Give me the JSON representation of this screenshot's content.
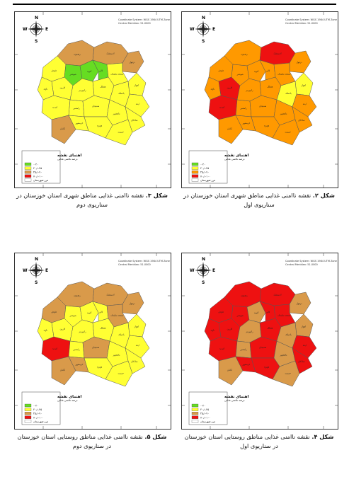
{
  "figures": [
    {
      "id": "fig2",
      "caption_label": "شکل ۲.",
      "caption_text": " نقشه ناامنی غذایی مناطق شهری استان خوزستان در سناریوی اول",
      "coordinate_title": "Coordinate System: WGS 1984 UTM Zone 39N",
      "coordinate_sub": "Central Meridian: 51.0000",
      "legend_title": "اهنمای نقشه",
      "legend_subtitle": "درصد ناامنی غذایی",
      "legend_items": [
        {
          "label": "۰-۲۰",
          "color": "#66dd22"
        },
        {
          "label": "۲۰٫۱-۴۵",
          "color": "#ffff33"
        },
        {
          "label": "۴۵٫۱-۷۰",
          "color": "#ff9900"
        },
        {
          "label": "۷۰٫۱-۱۰۰",
          "color": "#ee1111"
        },
        {
          "label": "مرز شهرستان",
          "color": "#ffffff"
        }
      ],
      "region_colors": [
        "#ff9900",
        "#ee1111",
        "#ff9900",
        "#ff9900",
        "#ff9900",
        "#ff9900",
        "#ff9900",
        "#ff9900",
        "#ffff33",
        "#ff9900",
        "#ee1111",
        "#ff9900",
        "#ff9900",
        "#ffff33",
        "#ff9900",
        "#ee1111",
        "#ff9900",
        "#ff9900",
        "#ff9900",
        "#ff9900",
        "#ff9900",
        "#ff9900",
        "#ff9900",
        "#ff9900"
      ],
      "county_labels": [
        "رهنمون",
        "اندیمشک",
        "دزفول",
        "شوش",
        "شوشتر",
        "گتوند",
        "لالی",
        "مسجد سلیمان",
        "اهواز",
        "باوی",
        "کارون",
        "رامهرمز",
        "هفتکل",
        "باغملک",
        "ایذه",
        "امیدیه",
        "رامشیر",
        "هندیجان",
        "ماهشهر",
        "شادگان",
        "آبادان",
        "خرمشهر",
        "هویزه",
        "حمیدیه"
      ]
    },
    {
      "id": "fig3",
      "caption_label": "شکل ۳.",
      "caption_text": " نقشه ناامنی غذایی مناطق شهری استان خوزستان در سناریوی دوم",
      "coordinate_title": "Coordinate System: WGS 1984 UTM Zone 39N",
      "coordinate_sub": "Central Meridian: 51.0000",
      "legend_title": "اهنمای نقشه",
      "legend_subtitle": "درصد ناامنی غذایی",
      "legend_items": [
        {
          "label": "۰-۲۰",
          "color": "#66dd22"
        },
        {
          "label": "۲۰٫۱-۴۵",
          "color": "#ffff33"
        },
        {
          "label": "۴۵٫۱-۷۰",
          "color": "#d99a4a"
        },
        {
          "label": "۷۰٫۱-۱۰۰",
          "color": "#ee1111"
        },
        {
          "label": "مرز شهرستان",
          "color": "#ffffff"
        }
      ],
      "region_colors": [
        "#d99a4a",
        "#d99a4a",
        "#d99a4a",
        "#ffff33",
        "#66dd22",
        "#66dd22",
        "#66dd22",
        "#ffff33",
        "#ffff33",
        "#ffff33",
        "#ffff33",
        "#ffff33",
        "#ffff33",
        "#ffff33",
        "#ffff33",
        "#ffff33",
        "#ffff33",
        "#ffff33",
        "#ffff33",
        "#ffff33",
        "#d99a4a",
        "#ffff33",
        "#ffff33",
        "#ffff33"
      ],
      "county_labels": [
        "رهنمون",
        "اندیمشک",
        "دزفول",
        "شوش",
        "شوشتر",
        "گتوند",
        "لالی",
        "مسجد سلیمان",
        "اهواز",
        "باوی",
        "کارون",
        "رامهرمز",
        "هفتکل",
        "باغملک",
        "ایذه",
        "امیدیه",
        "رامشیر",
        "هندیجان",
        "ماهشهر",
        "شادگان",
        "آبادان",
        "خرمشهر",
        "هویزه",
        "حمیدیه"
      ]
    },
    {
      "id": "fig4",
      "caption_label": "شکل ۴.",
      "caption_text": " نقشه ناامنی غذایی مناطق روستایی استان خوزستان در سناریوی اول",
      "coordinate_title": "Coordinate System: WGS 1984 UTM Zone 39N",
      "coordinate_sub": "Central Meridian: 51.0000",
      "legend_title": "اهنمای نقشه",
      "legend_subtitle": "درصد ناامنی غذایی",
      "legend_items": [
        {
          "label": "۰-۲۰",
          "color": "#66dd22"
        },
        {
          "label": "۲۰٫۱-۴۵",
          "color": "#ffff33"
        },
        {
          "label": "۴۵٫۱-۷۰",
          "color": "#d99a4a"
        },
        {
          "label": "۷۰٫۱-۱۰۰",
          "color": "#ee1111"
        },
        {
          "label": "مرز شهرستان",
          "color": "#ffffff"
        }
      ],
      "region_colors": [
        "#ee1111",
        "#ee1111",
        "#d99a4a",
        "#ee1111",
        "#ee1111",
        "#d99a4a",
        "#ee1111",
        "#ee1111",
        "#d99a4a",
        "#ee1111",
        "#ee1111",
        "#d99a4a",
        "#ee1111",
        "#d99a4a",
        "#ee1111",
        "#ee1111",
        "#d99a4a",
        "#ee1111",
        "#d99a4a",
        "#ee1111",
        "#d99a4a",
        "#ee1111",
        "#ee1111",
        "#d99a4a"
      ],
      "county_labels": [
        "رهنمون",
        "اندیمشک",
        "دزفول",
        "شوش",
        "شوشتر",
        "گتوند",
        "لالی",
        "مسجد سلیمان",
        "اهواز",
        "باوی",
        "کارون",
        "رامهرمز",
        "هفتکل",
        "باغملک",
        "ایذه",
        "امیدیه",
        "رامشیر",
        "هندیجان",
        "ماهشهر",
        "شادگان",
        "آبادان",
        "خرمشهر",
        "هویزه",
        "حمیدیه"
      ]
    },
    {
      "id": "fig5",
      "caption_label": "شکل ۵.",
      "caption_text": " نقشه ناامنی غذایی مناطق روستایی استان خوزستان در سناریوی دوم",
      "coordinate_title": "Coordinate System: WGS 1984 UTM Zone 39N",
      "coordinate_sub": "Central Meridian: 51.0000",
      "legend_title": "اهنمای نقشه",
      "legend_subtitle": "درصد ناامنی غذایی",
      "legend_items": [
        {
          "label": "۰-۲۰",
          "color": "#66dd22"
        },
        {
          "label": "۲۰٫۱-۴۵",
          "color": "#ffff33"
        },
        {
          "label": "۴۵٫۱-۷۰",
          "color": "#d99a4a"
        },
        {
          "label": "۷۰٫۱-۱۰۰",
          "color": "#ee1111"
        },
        {
          "label": "مرز شهرستان",
          "color": "#ffffff"
        }
      ],
      "region_colors": [
        "#d99a4a",
        "#d99a4a",
        "#d99a4a",
        "#d99a4a",
        "#ffff33",
        "#ffff33",
        "#ffff33",
        "#d99a4a",
        "#ffff33",
        "#ffff33",
        "#ffff33",
        "#ffff33",
        "#ffff33",
        "#ffff33",
        "#ffff33",
        "#ee1111",
        "#ffff33",
        "#d99a4a",
        "#ffff33",
        "#ffff33",
        "#d99a4a",
        "#d99a4a",
        "#ffff33",
        "#ffff33"
      ],
      "county_labels": [
        "رهنمون",
        "اندیمشک",
        "دزفول",
        "شوش",
        "شوشتر",
        "گتوند",
        "لالی",
        "مسجد سلیمان",
        "اهواز",
        "باوی",
        "کارون",
        "رامهرمز",
        "هفتکل",
        "باغملک",
        "ایذه",
        "امیدیه",
        "رامشیر",
        "هندیجان",
        "ماهشهر",
        "شادگان",
        "آبادان",
        "خرمشهر",
        "هویزه",
        "حمیدیه"
      ]
    }
  ]
}
